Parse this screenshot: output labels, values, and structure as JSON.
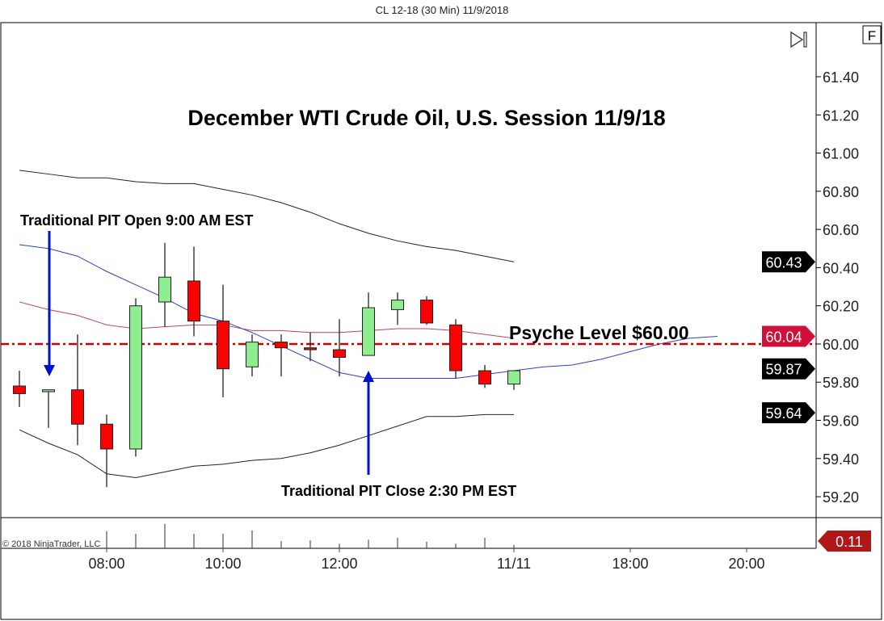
{
  "window_title": "CL 12-18 (30 Min)  11/9/2018",
  "copyright": "© 2018 NinjaTrader, LLC",
  "toolbar": {
    "scroll_end_icon": "play-to-end-icon",
    "f_button": "F"
  },
  "annotations": {
    "title": "December WTI Crude Oil, U.S. Session 11/9/18",
    "pit_open": "Traditional PIT Open 9:00 AM EST",
    "pit_close": "Traditional PIT Close 2:30 PM EST",
    "psyche": "Psyche Level $60.00"
  },
  "colors": {
    "up": "#90ee90",
    "down": "#ff0000",
    "upper_band": "#222222",
    "middle_band": "#c04060",
    "blue_line": "#3040c0",
    "psyche_line": "#cc0000",
    "arrow": "#0010d0",
    "tag_black": "#000000",
    "tag_red": "#d0103a",
    "tag_volume": "#b01818"
  },
  "chart_data": {
    "type": "candlestick",
    "ylim": [
      59.1,
      61.55
    ],
    "y_ticks": [
      "61.40",
      "61.20",
      "61.00",
      "60.80",
      "60.60",
      "60.40",
      "60.20",
      "60.00",
      "59.80",
      "59.60",
      "59.40",
      "59.20"
    ],
    "x_ticks": [
      {
        "label": "08:00",
        "bar": 3
      },
      {
        "label": "10:00",
        "bar": 7
      },
      {
        "label": "12:00",
        "bar": 11
      },
      {
        "label": "11/11",
        "bar": 17
      },
      {
        "label": "18:00",
        "bar": 21
      },
      {
        "label": "20:00",
        "bar": 25
      }
    ],
    "candles": [
      {
        "o": 59.78,
        "h": 59.86,
        "l": 59.67,
        "c": 59.74
      },
      {
        "o": 59.75,
        "h": 59.76,
        "l": 59.56,
        "c": 59.76
      },
      {
        "o": 59.76,
        "h": 60.05,
        "l": 59.47,
        "c": 59.58
      },
      {
        "o": 59.58,
        "h": 59.63,
        "l": 59.25,
        "c": 59.45
      },
      {
        "o": 59.45,
        "h": 60.24,
        "l": 59.41,
        "c": 60.2
      },
      {
        "o": 60.22,
        "h": 60.53,
        "l": 60.09,
        "c": 60.35
      },
      {
        "o": 60.33,
        "h": 60.51,
        "l": 60.04,
        "c": 60.12
      },
      {
        "o": 60.12,
        "h": 60.31,
        "l": 59.72,
        "c": 59.87
      },
      {
        "o": 59.88,
        "h": 60.05,
        "l": 59.83,
        "c": 60.01
      },
      {
        "o": 60.01,
        "h": 60.05,
        "l": 59.83,
        "c": 59.98
      },
      {
        "o": 59.98,
        "h": 60.06,
        "l": 59.91,
        "c": 59.97
      },
      {
        "o": 59.97,
        "h": 60.13,
        "l": 59.83,
        "c": 59.93
      },
      {
        "o": 59.94,
        "h": 60.27,
        "l": 59.94,
        "c": 60.19
      },
      {
        "o": 60.18,
        "h": 60.27,
        "l": 60.1,
        "c": 60.23
      },
      {
        "o": 60.23,
        "h": 60.25,
        "l": 60.1,
        "c": 60.11
      },
      {
        "o": 60.1,
        "h": 60.13,
        "l": 59.82,
        "c": 59.86
      },
      {
        "o": 59.86,
        "h": 59.89,
        "l": 59.77,
        "c": 59.79
      },
      {
        "o": 59.79,
        "h": 59.86,
        "l": 59.76,
        "c": 59.86
      }
    ],
    "upper_band": [
      60.91,
      60.89,
      60.87,
      60.87,
      60.85,
      60.84,
      60.84,
      60.81,
      60.78,
      60.74,
      60.69,
      60.63,
      60.58,
      60.54,
      60.51,
      60.49,
      60.46,
      60.43
    ],
    "middle_band": [
      60.22,
      60.18,
      60.15,
      60.1,
      60.08,
      60.09,
      60.1,
      60.1,
      60.07,
      60.07,
      60.06,
      60.06,
      60.07,
      60.08,
      60.08,
      60.07,
      60.05,
      60.03
    ],
    "lower_band": [
      59.55,
      59.48,
      59.42,
      59.32,
      59.3,
      59.33,
      59.36,
      59.37,
      59.39,
      59.4,
      59.43,
      59.47,
      59.52,
      59.57,
      59.62,
      59.62,
      59.63,
      59.63
    ],
    "blue_line": [
      60.52,
      60.5,
      60.46,
      60.38,
      60.31,
      60.24,
      60.16,
      60.12,
      60.06,
      59.99,
      59.92,
      59.85,
      59.82,
      59.82,
      59.82,
      59.82,
      59.84,
      59.86,
      59.88,
      59.89,
      59.92,
      59.96,
      60.0,
      60.03,
      60.04
    ],
    "psyche_level": 60.0,
    "price_tags": [
      {
        "label": "60.43",
        "value": 60.43,
        "color": "#000000"
      },
      {
        "label": "60.04",
        "value": 60.04,
        "color": "#d0103a"
      },
      {
        "label": "59.87",
        "value": 59.87,
        "color": "#000000"
      },
      {
        "label": "59.64",
        "value": 59.64,
        "color": "#000000"
      }
    ],
    "volume": [
      null,
      null,
      null,
      0.26,
      0.22,
      0.37,
      0.22,
      0.22,
      0.27,
      0.11,
      0.12,
      0.07,
      0.13,
      0.16,
      0.1,
      0.07,
      0.16,
      0.05
    ],
    "volume_max": 0.44,
    "volume_tag": "0.11"
  }
}
